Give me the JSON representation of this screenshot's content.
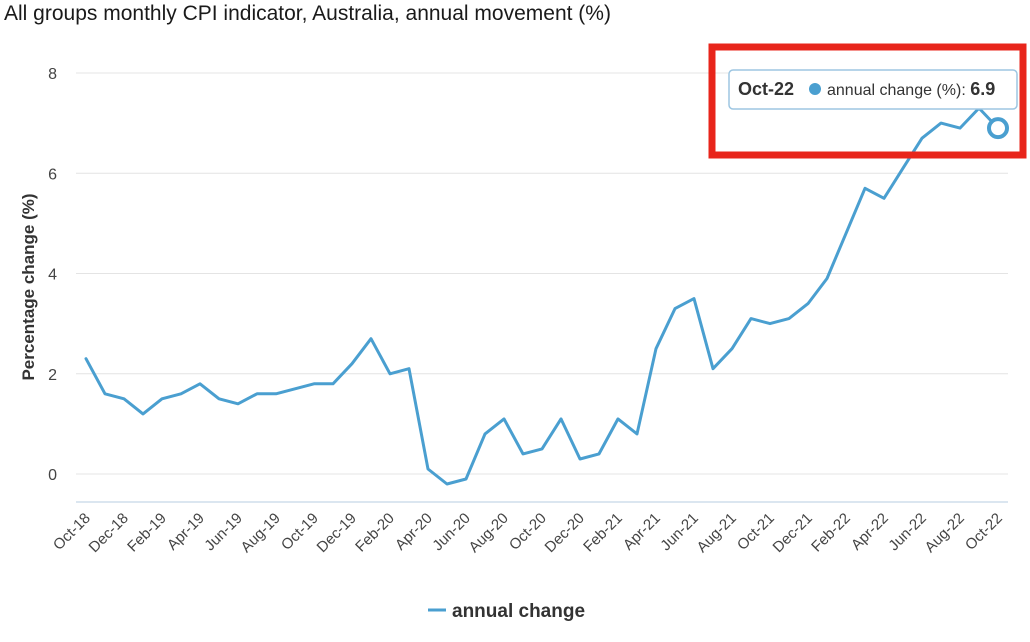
{
  "chart_data": {
    "type": "line",
    "title": "All groups monthly CPI indicator, Australia, annual movement (%)",
    "xlabel": "",
    "ylabel": "Percentage change (%)",
    "ylim": [
      -0.6,
      8
    ],
    "yticks": [
      0,
      2,
      4,
      6,
      8
    ],
    "grid": true,
    "x": [
      "Oct-18",
      "Nov-18",
      "Dec-18",
      "Jan-19",
      "Feb-19",
      "Mar-19",
      "Apr-19",
      "May-19",
      "Jun-19",
      "Jul-19",
      "Aug-19",
      "Sep-19",
      "Oct-19",
      "Nov-19",
      "Dec-19",
      "Jan-20",
      "Feb-20",
      "Mar-20",
      "Apr-20",
      "May-20",
      "Jun-20",
      "Jul-20",
      "Aug-20",
      "Sep-20",
      "Oct-20",
      "Nov-20",
      "Dec-20",
      "Jan-21",
      "Feb-21",
      "Mar-21",
      "Apr-21",
      "May-21",
      "Jun-21",
      "Jul-21",
      "Aug-21",
      "Sep-21",
      "Oct-21",
      "Nov-21",
      "Dec-21",
      "Jan-22",
      "Feb-22",
      "Mar-22",
      "Apr-22",
      "May-22",
      "Jun-22",
      "Jul-22",
      "Aug-22",
      "Sep-22",
      "Oct-22"
    ],
    "x_tick_labels": [
      "Oct-18",
      "Dec-18",
      "Feb-19",
      "Apr-19",
      "Jun-19",
      "Aug-19",
      "Oct-19",
      "Dec-19",
      "Feb-20",
      "Apr-20",
      "Jun-20",
      "Aug-20",
      "Oct-20",
      "Dec-20",
      "Feb-21",
      "Apr-21",
      "Jun-21",
      "Aug-21",
      "Oct-21",
      "Dec-21",
      "Feb-22",
      "Apr-22",
      "Jun-22",
      "Aug-22",
      "Oct-22"
    ],
    "series": [
      {
        "name": "annual change",
        "color": "#4a9fd0",
        "values": [
          2.3,
          1.6,
          1.5,
          1.2,
          1.5,
          1.6,
          1.8,
          1.5,
          1.4,
          1.6,
          1.6,
          1.7,
          1.8,
          1.8,
          2.2,
          2.7,
          2.0,
          2.1,
          0.1,
          -0.2,
          -0.1,
          0.8,
          1.1,
          0.4,
          0.5,
          1.1,
          0.3,
          0.4,
          1.1,
          0.8,
          2.5,
          3.3,
          3.5,
          2.1,
          2.5,
          3.1,
          3.0,
          3.1,
          3.4,
          3.9,
          4.8,
          5.7,
          5.5,
          6.1,
          6.7,
          7.0,
          6.9,
          7.3,
          6.9
        ]
      }
    ],
    "legend": {
      "label": "annual change",
      "position": "bottom-center"
    },
    "tooltip": {
      "category": "Oct-22",
      "label": "annual change (%): ",
      "value": "6.9"
    },
    "highlight_color": "#e8251b"
  }
}
